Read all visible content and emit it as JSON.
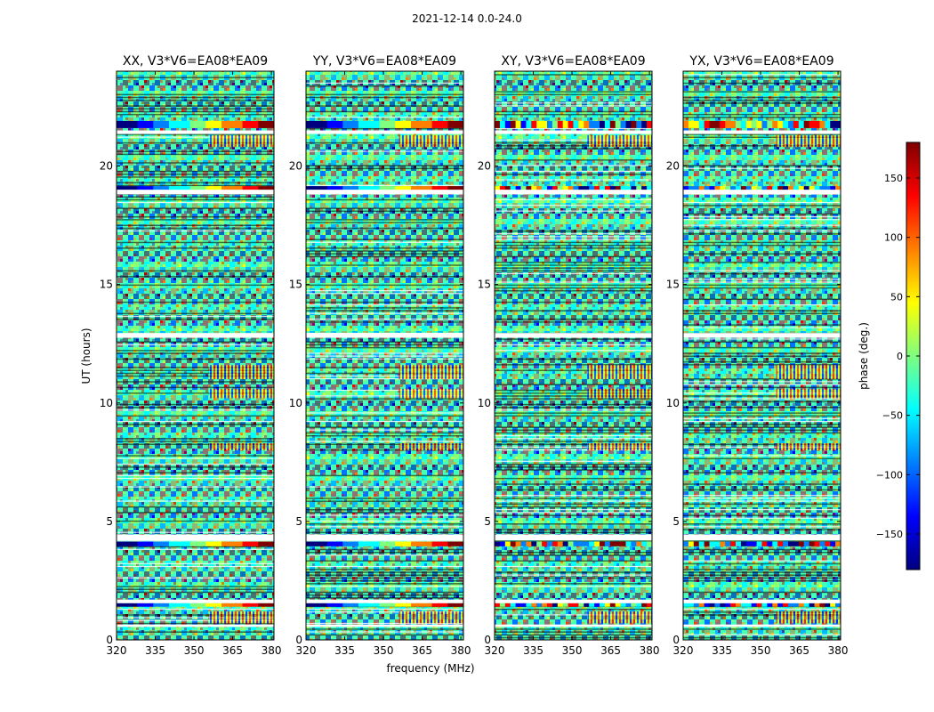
{
  "figure": {
    "suptitle": "2021-12-14 0.0-24.0"
  },
  "chart_data": {
    "type": "heatmap",
    "title": "2021-12-14 0.0-24.0",
    "xlabel": "frequency (MHz)",
    "ylabel": "UT (hours)",
    "xlim": [
      320,
      381
    ],
    "ylim": [
      0,
      24
    ],
    "xticks": [
      "320",
      "335",
      "350",
      "365",
      "380"
    ],
    "xtick_values": [
      320,
      335,
      350,
      365,
      380
    ],
    "yticks": [
      "0",
      "5",
      "10",
      "15",
      "20"
    ],
    "ytick_values": [
      0,
      5,
      10,
      15,
      20
    ],
    "panels": [
      {
        "title": "XX, V3*V6=EA08*EA09",
        "pol": "XX",
        "parallel_hand": true
      },
      {
        "title": "YY, V3*V6=EA08*EA09",
        "pol": "YY",
        "parallel_hand": true
      },
      {
        "title": "XY, V3*V6=EA08*EA09",
        "pol": "XY",
        "parallel_hand": false
      },
      {
        "title": "YX, V3*V6=EA08*EA09",
        "pol": "YX",
        "parallel_hand": false
      }
    ],
    "white_gaps_hours": [
      [
        21.35,
        21.5
      ],
      [
        18.8,
        19.0
      ],
      [
        12.75,
        12.95
      ],
      [
        4.2,
        4.45
      ],
      [
        1.55,
        1.7
      ],
      [
        0.55,
        0.65
      ]
    ],
    "smooth_bands_hours": [
      [
        21.6,
        21.9
      ],
      [
        18.95,
        19.15
      ],
      [
        3.95,
        4.15
      ],
      [
        1.4,
        1.55
      ]
    ],
    "colorbar": {
      "label": "phase (deg.)",
      "range": [
        -180,
        180
      ],
      "ticks": [
        "150",
        "100",
        "50",
        "0",
        "−50",
        "−100",
        "−150"
      ],
      "tick_values": [
        150,
        100,
        50,
        0,
        -50,
        -100,
        -150
      ],
      "colormap": "jet"
    }
  }
}
